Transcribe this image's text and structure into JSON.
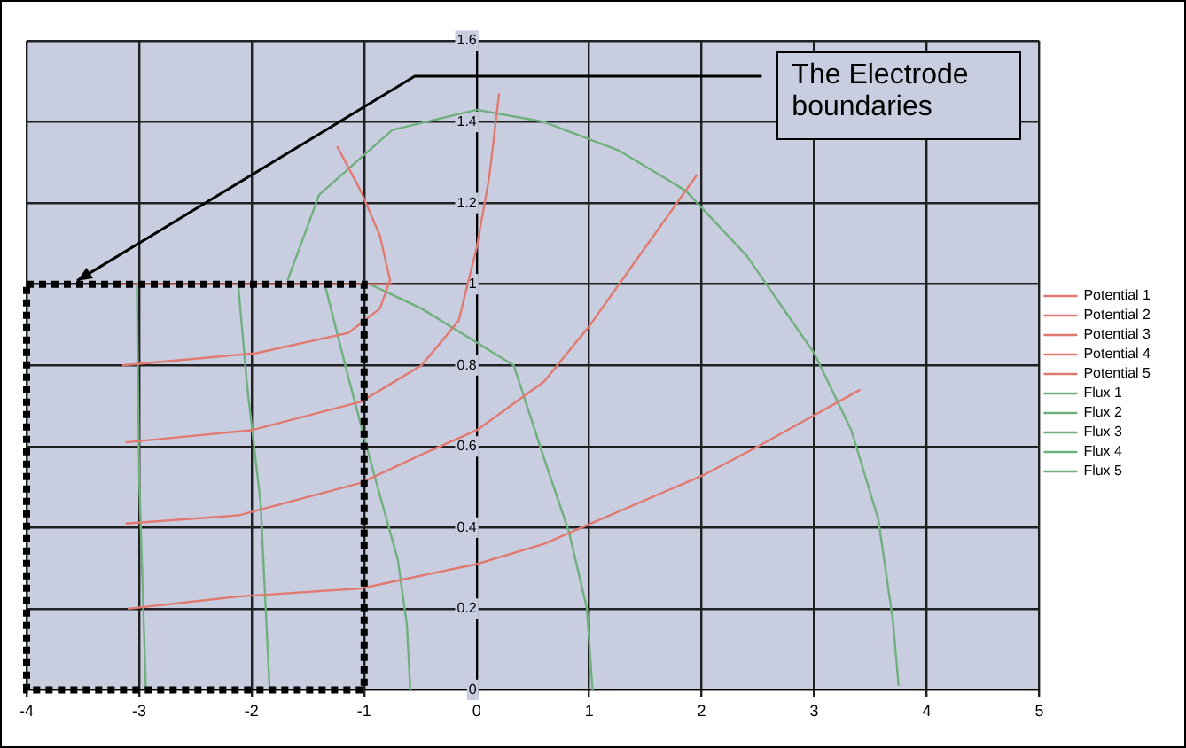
{
  "chart_data": {
    "type": "line",
    "annotations": [
      "The Electrode boundaries"
    ],
    "series": [
      {
        "name": "Potential 1",
        "color": "#e07a70",
        "x": [
          -3.1,
          -2.12,
          -1.03,
          0,
          0.6,
          0.93,
          2.02,
          2.5,
          3.41
        ],
        "values": [
          0.2,
          0.23,
          0.25,
          0.31,
          0.36,
          0.4,
          0.53,
          0.6,
          0.74
        ]
      },
      {
        "name": "Potential 2",
        "color": "#e07a70",
        "x": [
          -3.12,
          -2.12,
          -1.03,
          -0.49,
          0,
          0.6,
          1.01,
          1.42,
          1.96
        ],
        "values": [
          0.41,
          0.43,
          0.51,
          0.58,
          0.64,
          0.76,
          0.9,
          1.06,
          1.27
        ]
      },
      {
        "name": "Potential 3",
        "color": "#e07a70",
        "x": [
          -3.12,
          -2.0,
          -1.03,
          -0.49,
          -0.16,
          0,
          0.11,
          0.2
        ],
        "values": [
          0.61,
          0.64,
          0.71,
          0.8,
          0.91,
          1.09,
          1.26,
          1.47
        ]
      },
      {
        "name": "Potential 4",
        "color": "#e07a70",
        "x": [
          -3.15,
          -1.96,
          -1.14,
          -0.86,
          -0.77,
          -0.86,
          -1.03,
          -1.24
        ],
        "values": [
          0.8,
          0.83,
          0.88,
          0.94,
          1.01,
          1.12,
          1.23,
          1.34
        ]
      },
      {
        "name": "Potential 5",
        "color": "#e07a70",
        "x": [
          -3.2,
          -2.0,
          -0.75
        ],
        "values": [
          1.0,
          1.0,
          1.0
        ]
      },
      {
        "name": "Flux 1",
        "color": "#6fb07e",
        "x": [
          -1.68,
          -1.4,
          -0.75,
          0,
          0.6,
          1.26,
          1.86,
          2.4,
          3.0,
          3.33,
          3.57,
          3.7,
          3.75
        ],
        "values": [
          1.01,
          1.22,
          1.38,
          1.43,
          1.4,
          1.33,
          1.23,
          1.07,
          0.83,
          0.64,
          0.42,
          0.17,
          0.01
        ]
      },
      {
        "name": "Flux 2",
        "color": "#6fb07e",
        "x": [
          -0.95,
          -0.49,
          0.33,
          0.6,
          0.82,
          0.98,
          1.03
        ],
        "values": [
          1.0,
          0.94,
          0.8,
          0.57,
          0.39,
          0.2,
          0
        ]
      },
      {
        "name": "Flux 3",
        "color": "#6fb07e",
        "x": [
          -1.35,
          -1.14,
          -0.92,
          -0.7,
          -0.62,
          -0.59
        ],
        "values": [
          1.0,
          0.77,
          0.54,
          0.32,
          0.16,
          0
        ]
      },
      {
        "name": "Flux 4",
        "color": "#6fb07e",
        "x": [
          -2.12,
          -2.04,
          -1.92,
          -1.84
        ],
        "values": [
          1.0,
          0.75,
          0.46,
          0
        ]
      },
      {
        "name": "Flux 5",
        "color": "#6fb07e",
        "x": [
          -3.02,
          -3.0,
          -2.94
        ],
        "values": [
          1.0,
          0.53,
          0
        ]
      }
    ],
    "xlim": [
      -4,
      5
    ],
    "xticks": [
      -4,
      -3,
      -2,
      -1,
      0,
      1,
      2,
      3,
      4,
      5
    ],
    "ylim": [
      0,
      1.6
    ],
    "yticks": [
      0,
      0.2,
      0.4,
      0.6,
      0.8,
      1,
      1.2,
      1.4,
      1.6
    ],
    "grid": true,
    "legend": "right",
    "marker": "none",
    "line_style": "solid"
  }
}
